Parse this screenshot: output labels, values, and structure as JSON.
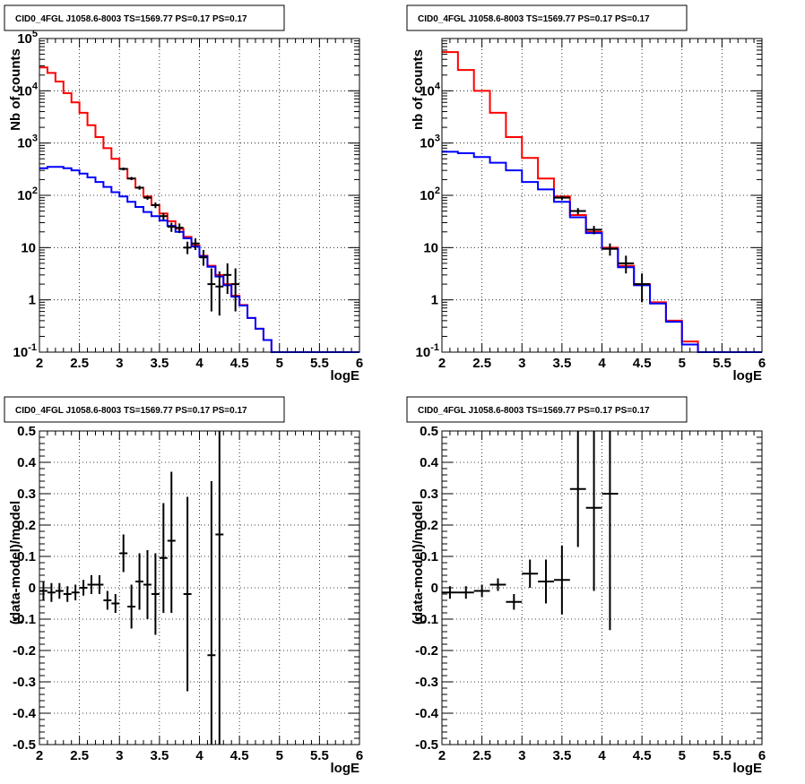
{
  "chart_data": [
    {
      "type": "histogram",
      "title": "CID0_4FGL J1058.6-8003 TS=1569.77 PS=0.17 PS=0.17",
      "xlabel": "logE",
      "ylabel": "Nb of counts",
      "xlim": [
        2,
        6
      ],
      "ylim": [
        0.1,
        100000
      ],
      "yscale": "log",
      "grid": true,
      "x_ticks": [
        "2",
        "2.5",
        "3",
        "3.5",
        "4",
        "4.5",
        "5",
        "5.5",
        "6"
      ],
      "y_ticks": [
        {
          "value": 0.1,
          "base": "10",
          "exp": "-1"
        },
        {
          "value": 1,
          "label": "1"
        },
        {
          "value": 10,
          "label": "10"
        },
        {
          "value": 100,
          "base": "10",
          "exp": "2"
        },
        {
          "value": 1000,
          "base": "10",
          "exp": "3"
        },
        {
          "value": 10000,
          "base": "10",
          "exp": "4"
        },
        {
          "value": 100000,
          "base": "10",
          "exp": "5"
        }
      ],
      "bin_edges": [
        2,
        2.1,
        2.2,
        2.3,
        2.4,
        2.5,
        2.6,
        2.7,
        2.8,
        2.9,
        3,
        3.1,
        3.2,
        3.3,
        3.4,
        3.5,
        3.6,
        3.7,
        3.8,
        3.9,
        4,
        4.1,
        4.2,
        4.3,
        4.4,
        4.5,
        4.6,
        4.7,
        4.8,
        4.9,
        5,
        5.1,
        5.2,
        5.3,
        5.4,
        5.5,
        5.6,
        5.7,
        5.8,
        5.9,
        6
      ],
      "series": [
        {
          "color": "#ff0000",
          "values": [
            28000,
            22000,
            15000,
            9000,
            6000,
            3800,
            2200,
            1300,
            800,
            500,
            320,
            210,
            140,
            95,
            65,
            45,
            32,
            23,
            16,
            11,
            7,
            4.5,
            3,
            2,
            1.2,
            0.8,
            0.45,
            0.28,
            0.17,
            0.1,
            0.1,
            0.1,
            0.1,
            0.1,
            0.1,
            0.1,
            0.1,
            0.1,
            0.1,
            0.1
          ]
        },
        {
          "color": "#0000ff",
          "values": [
            330,
            350,
            350,
            330,
            300,
            260,
            220,
            180,
            145,
            115,
            95,
            75,
            60,
            48,
            40,
            33,
            26,
            20,
            15,
            10.5,
            6.8,
            4.3,
            2.8,
            1.9,
            1.15,
            0.78,
            0.45,
            0.28,
            0.17,
            0.1,
            0.1,
            0.1,
            0.1,
            0.1,
            0.1,
            0.1,
            0.1,
            0.1,
            0.1,
            0.1
          ]
        },
        {
          "color": "#000000",
          "type": "errorbar",
          "x": [
            3.05,
            3.15,
            3.25,
            3.35,
            3.45,
            3.55,
            3.65,
            3.75,
            3.85,
            3.95,
            4.05,
            4.15,
            4.25,
            4.35,
            4.45
          ],
          "xerr": 0.05,
          "y": [
            320,
            210,
            140,
            90,
            65,
            40,
            25,
            24,
            10,
            12,
            6.5,
            2,
            1.8,
            3,
            2
          ],
          "ylo": [
            300,
            195,
            128,
            82,
            57,
            34,
            20,
            19,
            7.5,
            9,
            4.5,
            0.6,
            0.5,
            1.3,
            0.6
          ],
          "yhi": [
            340,
            225,
            152,
            98,
            73,
            46,
            30,
            29,
            13,
            15,
            9,
            4,
            3.5,
            5,
            4
          ]
        }
      ]
    },
    {
      "type": "histogram",
      "title": "CID0_4FGL J1058.6-8003 TS=1569.77 PS=0.17 PS=0.17",
      "xlabel": "logE",
      "ylabel": "nb of counts",
      "xlim": [
        2,
        6
      ],
      "ylim": [
        0.1,
        100000
      ],
      "yscale": "log",
      "grid": true,
      "x_ticks": [
        "2",
        "2.5",
        "3",
        "3.5",
        "4",
        "4.5",
        "5",
        "5.5",
        "6"
      ],
      "y_ticks": [
        {
          "value": 0.1,
          "base": "10",
          "exp": "-1"
        },
        {
          "value": 1,
          "label": "1"
        },
        {
          "value": 10,
          "label": "10"
        },
        {
          "value": 100,
          "base": "10",
          "exp": "2"
        },
        {
          "value": 1000,
          "base": "10",
          "exp": "3"
        },
        {
          "value": 10000,
          "base": "10",
          "exp": "4"
        }
      ],
      "bin_edges": [
        2,
        2.2,
        2.4,
        2.6,
        2.8,
        3,
        3.2,
        3.4,
        3.6,
        3.8,
        4,
        4.2,
        4.4,
        4.6,
        4.8,
        5,
        5.2,
        5.4,
        5.6,
        5.8,
        6
      ],
      "series": [
        {
          "color": "#ff0000",
          "values": [
            55000,
            25000,
            10000,
            3800,
            1300,
            520,
            210,
            95,
            42,
            20,
            10,
            4.5,
            2,
            0.9,
            0.4,
            0.16,
            0.1,
            0.1,
            0.1,
            0.1
          ]
        },
        {
          "color": "#0000ff",
          "values": [
            680,
            640,
            540,
            420,
            300,
            180,
            130,
            75,
            38,
            19,
            9.5,
            4.2,
            1.9,
            0.85,
            0.38,
            0.14,
            0.1,
            0.1,
            0.1,
            0.1
          ]
        },
        {
          "color": "#000000",
          "type": "errorbar",
          "x": [
            3.5,
            3.7,
            3.9,
            4.1,
            4.3,
            4.5
          ],
          "xerr": 0.1,
          "y": [
            90,
            50,
            22,
            9.5,
            5,
            2
          ],
          "ylo": [
            82,
            43,
            18,
            7,
            3.2,
            0.9
          ],
          "yhi": [
            98,
            57,
            26,
            12,
            7,
            3.2
          ]
        }
      ]
    },
    {
      "type": "errorbar",
      "title": "CID0_4FGL J1058.6-8003 TS=1569.77 PS=0.17 PS=0.17",
      "xlabel": "logE",
      "ylabel": "(data-model)/model",
      "xlim": [
        2,
        6
      ],
      "ylim": [
        -0.5,
        0.5
      ],
      "grid": true,
      "x_ticks": [
        "2",
        "2.5",
        "3",
        "3.5",
        "4",
        "4.5",
        "5",
        "5.5",
        "6"
      ],
      "y_ticks": [
        "-0.5",
        "-0.4",
        "-0.3",
        "-0.2",
        "-0.1",
        "0",
        "0.1",
        "0.2",
        "0.3",
        "0.4",
        "0.5"
      ],
      "series": [
        {
          "color": "#000000",
          "x": [
            2.05,
            2.15,
            2.25,
            2.35,
            2.45,
            2.55,
            2.65,
            2.75,
            2.85,
            2.95,
            3.05,
            3.15,
            3.25,
            3.35,
            3.45,
            3.55,
            3.65,
            3.85,
            4.15,
            4.25
          ],
          "xerr": 0.05,
          "y": [
            -0.01,
            -0.015,
            -0.01,
            -0.02,
            -0.015,
            0.0,
            0.01,
            0.01,
            -0.04,
            -0.05,
            0.11,
            -0.06,
            0.02,
            0.01,
            -0.02,
            0.095,
            0.15,
            -0.02,
            -0.215,
            0.17
          ],
          "ylo": [
            -0.04,
            -0.045,
            -0.035,
            -0.045,
            -0.04,
            -0.025,
            -0.02,
            -0.02,
            -0.07,
            -0.08,
            0.05,
            -0.13,
            -0.07,
            -0.1,
            -0.15,
            -0.08,
            -0.08,
            -0.33,
            -0.5,
            -0.5
          ],
          "yhi": [
            0.02,
            0.015,
            0.015,
            0.005,
            0.01,
            0.025,
            0.04,
            0.04,
            -0.01,
            -0.02,
            0.17,
            0.01,
            0.11,
            0.12,
            0.11,
            0.27,
            0.37,
            0.29,
            0.34,
            0.5
          ]
        }
      ]
    },
    {
      "type": "errorbar",
      "title": "CID0_4FGL J1058.6-8003 TS=1569.77 PS=0.17 PS=0.17",
      "xlabel": "logE",
      "ylabel": "(data-model)/model",
      "xlim": [
        2,
        6
      ],
      "ylim": [
        -0.5,
        0.5
      ],
      "grid": true,
      "x_ticks": [
        "2",
        "2.5",
        "3",
        "3.5",
        "4",
        "4.5",
        "5",
        "5.5",
        "6"
      ],
      "y_ticks": [
        "-0.5",
        "-0.4",
        "-0.3",
        "-0.2",
        "-0.1",
        "0",
        "0.1",
        "0.2",
        "0.3",
        "0.4",
        "0.5"
      ],
      "series": [
        {
          "color": "#000000",
          "x": [
            2.1,
            2.3,
            2.5,
            2.7,
            2.9,
            3.1,
            3.3,
            3.5,
            3.7,
            3.9,
            4.1
          ],
          "xerr": 0.1,
          "y": [
            -0.015,
            -0.015,
            -0.01,
            0.01,
            -0.045,
            0.045,
            0.02,
            0.025,
            0.315,
            0.255,
            0.3
          ],
          "ylo": [
            -0.035,
            -0.035,
            -0.03,
            -0.01,
            -0.07,
            0.0,
            -0.05,
            -0.085,
            0.13,
            -0.01,
            -0.135
          ],
          "yhi": [
            0.005,
            0.005,
            0.01,
            0.03,
            -0.02,
            0.09,
            0.09,
            0.135,
            0.5,
            0.5,
            0.5
          ]
        }
      ]
    }
  ]
}
